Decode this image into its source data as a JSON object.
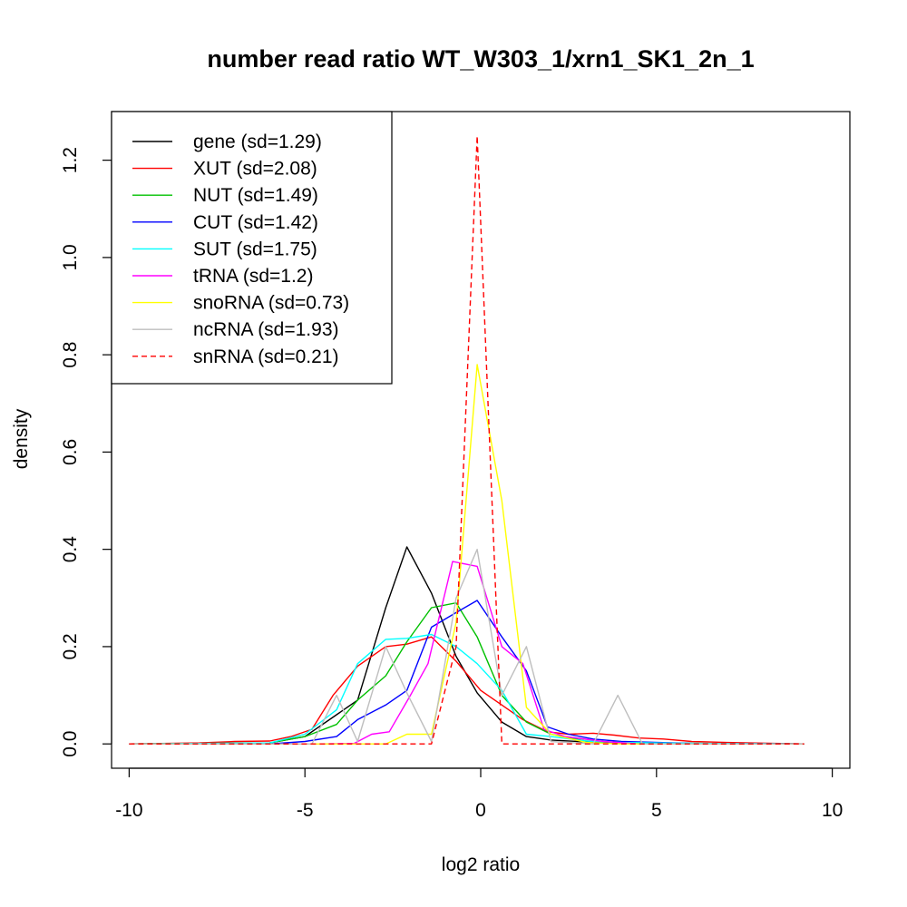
{
  "chart_data": {
    "type": "line",
    "title": "number read ratio WT_W303_1/xrn1_SK1_2n_1",
    "xlabel": "log2 ratio",
    "ylabel": "density",
    "xlim": [
      -10.5,
      10.5
    ],
    "ylim": [
      -0.05,
      1.3
    ],
    "x_ticks": [
      -10,
      -5,
      0,
      5,
      10
    ],
    "x_tick_labels": [
      "-10",
      "-5",
      "0",
      "5",
      "10"
    ],
    "y_ticks": [
      0.0,
      0.2,
      0.4,
      0.6,
      0.8,
      1.0,
      1.2
    ],
    "y_tick_labels": [
      "0.0",
      "0.2",
      "0.4",
      "0.6",
      "0.8",
      "1.0",
      "1.2"
    ],
    "grid": false,
    "legend_position": "top-left",
    "series": [
      {
        "name": "gene (sd=1.29)",
        "color": "#000000",
        "dash": false,
        "points": [
          [
            -10,
            0
          ],
          [
            -6,
            0.002
          ],
          [
            -5,
            0.015
          ],
          [
            -4.1,
            0.06
          ],
          [
            -3.5,
            0.09
          ],
          [
            -2.7,
            0.28
          ],
          [
            -2.1,
            0.405
          ],
          [
            -1.4,
            0.31
          ],
          [
            -0.7,
            0.18
          ],
          [
            -0.1,
            0.105
          ],
          [
            0.6,
            0.045
          ],
          [
            1.3,
            0.015
          ],
          [
            2,
            0.008
          ],
          [
            3,
            0.004
          ],
          [
            4,
            0.002
          ],
          [
            6,
            0.001
          ],
          [
            9.2,
            0
          ]
        ]
      },
      {
        "name": "XUT (sd=2.08)",
        "color": "#ff0000",
        "dash": false,
        "points": [
          [
            -10,
            0
          ],
          [
            -8,
            0.002
          ],
          [
            -7,
            0.005
          ],
          [
            -6,
            0.006
          ],
          [
            -5.4,
            0.015
          ],
          [
            -4.8,
            0.03
          ],
          [
            -4.2,
            0.1
          ],
          [
            -3.5,
            0.16
          ],
          [
            -2.7,
            0.2
          ],
          [
            -2.1,
            0.205
          ],
          [
            -1.4,
            0.22
          ],
          [
            -0.7,
            0.17
          ],
          [
            0,
            0.11
          ],
          [
            0.6,
            0.08
          ],
          [
            1.2,
            0.05
          ],
          [
            1.9,
            0.025
          ],
          [
            2.5,
            0.02
          ],
          [
            3.2,
            0.022
          ],
          [
            3.8,
            0.018
          ],
          [
            4.5,
            0.012
          ],
          [
            5.2,
            0.01
          ],
          [
            6,
            0.005
          ],
          [
            7,
            0.003
          ],
          [
            9.2,
            0
          ]
        ]
      },
      {
        "name": "NUT (sd=1.49)",
        "color": "#00c000",
        "dash": false,
        "points": [
          [
            -10,
            0
          ],
          [
            -6,
            0.002
          ],
          [
            -5,
            0.015
          ],
          [
            -4.1,
            0.04
          ],
          [
            -3.5,
            0.09
          ],
          [
            -2.7,
            0.14
          ],
          [
            -2.1,
            0.21
          ],
          [
            -1.4,
            0.28
          ],
          [
            -0.7,
            0.29
          ],
          [
            -0.1,
            0.22
          ],
          [
            0.6,
            0.1
          ],
          [
            1.3,
            0.045
          ],
          [
            2,
            0.02
          ],
          [
            3,
            0.006
          ],
          [
            4,
            0.003
          ],
          [
            6,
            0.001
          ],
          [
            9.2,
            0
          ]
        ]
      },
      {
        "name": "CUT (sd=1.42)",
        "color": "#0000ff",
        "dash": false,
        "points": [
          [
            -10,
            0
          ],
          [
            -6,
            0
          ],
          [
            -5,
            0.005
          ],
          [
            -4.1,
            0.015
          ],
          [
            -3.5,
            0.05
          ],
          [
            -2.7,
            0.08
          ],
          [
            -2.1,
            0.11
          ],
          [
            -1.4,
            0.24
          ],
          [
            -0.7,
            0.27
          ],
          [
            -0.1,
            0.295
          ],
          [
            0.6,
            0.22
          ],
          [
            1.3,
            0.15
          ],
          [
            1.9,
            0.035
          ],
          [
            2.5,
            0.02
          ],
          [
            3.2,
            0.01
          ],
          [
            4,
            0.005
          ],
          [
            6,
            0.001
          ],
          [
            9.2,
            0
          ]
        ]
      },
      {
        "name": "SUT (sd=1.75)",
        "color": "#00ffff",
        "dash": false,
        "points": [
          [
            -10,
            0
          ],
          [
            -6,
            0.002
          ],
          [
            -5,
            0.02
          ],
          [
            -4.1,
            0.07
          ],
          [
            -3.5,
            0.165
          ],
          [
            -2.7,
            0.215
          ],
          [
            -2.1,
            0.217
          ],
          [
            -1.4,
            0.225
          ],
          [
            -0.7,
            0.2
          ],
          [
            -0.1,
            0.165
          ],
          [
            0.6,
            0.11
          ],
          [
            1.3,
            0.02
          ],
          [
            2,
            0.015
          ],
          [
            3,
            0.006
          ],
          [
            4,
            0.003
          ],
          [
            6,
            0.001
          ],
          [
            9.2,
            0
          ]
        ]
      },
      {
        "name": "tRNA (sd=1.2)",
        "color": "#ff00ff",
        "dash": false,
        "points": [
          [
            -10,
            0
          ],
          [
            -4.5,
            0
          ],
          [
            -3.6,
            0.001
          ],
          [
            -3.1,
            0.02
          ],
          [
            -2.6,
            0.025
          ],
          [
            -2,
            0.1
          ],
          [
            -1.5,
            0.165
          ],
          [
            -0.8,
            0.375
          ],
          [
            -0.1,
            0.365
          ],
          [
            0.6,
            0.2
          ],
          [
            1.2,
            0.165
          ],
          [
            1.8,
            0.03
          ],
          [
            2.4,
            0.015
          ],
          [
            3.5,
            0.005
          ],
          [
            4.5,
            0
          ],
          [
            9.2,
            0
          ]
        ]
      },
      {
        "name": "snoRNA (sd=0.73)",
        "color": "#ffff00",
        "dash": false,
        "points": [
          [
            -10,
            0
          ],
          [
            -2.7,
            0
          ],
          [
            -2.1,
            0.02
          ],
          [
            -1.4,
            0.02
          ],
          [
            -0.7,
            0.25
          ],
          [
            -0.1,
            0.78
          ],
          [
            0.6,
            0.5
          ],
          [
            1.3,
            0.075
          ],
          [
            2,
            0.02
          ],
          [
            3,
            0.003
          ],
          [
            4,
            0
          ],
          [
            9.2,
            0
          ]
        ]
      },
      {
        "name": "ncRNA (sd=1.93)",
        "color": "#bebebe",
        "dash": false,
        "points": [
          [
            -10,
            0
          ],
          [
            -4.8,
            0
          ],
          [
            -4.1,
            0.1
          ],
          [
            -3.5,
            0.005
          ],
          [
            -2.7,
            0.2
          ],
          [
            -2.1,
            0.105
          ],
          [
            -1.4,
            0.005
          ],
          [
            -0.7,
            0.3
          ],
          [
            -0.1,
            0.4
          ],
          [
            0.6,
            0.1
          ],
          [
            1.3,
            0.2
          ],
          [
            2,
            0.005
          ],
          [
            3.2,
            0
          ],
          [
            3.9,
            0.1
          ],
          [
            4.6,
            0
          ],
          [
            9.2,
            0
          ]
        ]
      },
      {
        "name": "snRNA (sd=0.21)",
        "color": "#ff0000",
        "dash": true,
        "points": [
          [
            -10,
            0
          ],
          [
            -1.4,
            0
          ],
          [
            -0.7,
            0.2
          ],
          [
            -0.1,
            1.25
          ],
          [
            0.6,
            0
          ],
          [
            9.2,
            0
          ]
        ]
      }
    ]
  }
}
